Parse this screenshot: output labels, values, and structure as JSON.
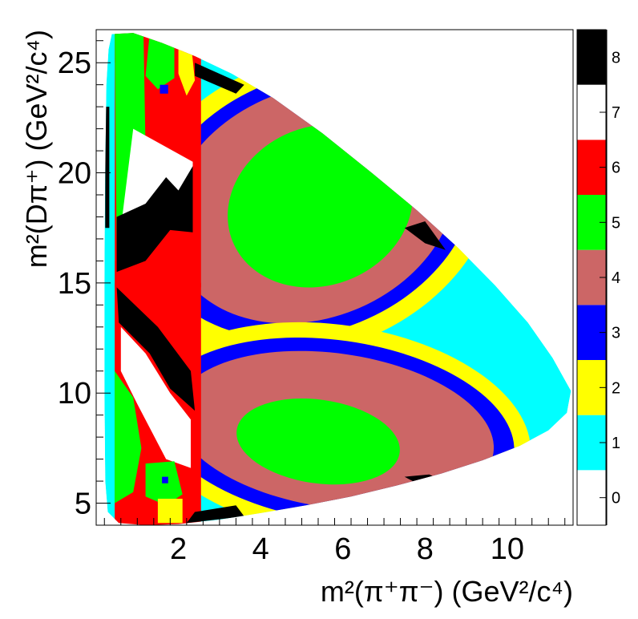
{
  "chart_data": {
    "type": "heatmap",
    "title": "",
    "xlabel": "m²(π⁺π⁻) (GeV²/c⁴)",
    "ylabel": "m²(Dπ⁺) (GeV²/c⁴)",
    "xlim": [
      0,
      11.6
    ],
    "ylim": [
      4.0,
      26.5
    ],
    "x_ticks": [
      2,
      4,
      6,
      8,
      10
    ],
    "x_tick_labels": [
      "2",
      "4",
      "6",
      "8",
      "10"
    ],
    "y_ticks": [
      5,
      10,
      15,
      20,
      25
    ],
    "y_tick_labels": [
      "5",
      "10",
      "15",
      "20",
      "25"
    ],
    "z_range": [
      -0.5,
      8.5
    ],
    "color_levels": [
      {
        "value": 0,
        "color": "#ffffff"
      },
      {
        "value": 1,
        "color": "#00ffff"
      },
      {
        "value": 2,
        "color": "#ffff00"
      },
      {
        "value": 3,
        "color": "#0000ff"
      },
      {
        "value": 4,
        "color": "#cc6666"
      },
      {
        "value": 5,
        "color": "#00ff00"
      },
      {
        "value": 6,
        "color": "#ff0000"
      },
      {
        "value": 7,
        "color": "#ffffff"
      },
      {
        "value": 8,
        "color": "#000000"
      }
    ],
    "colorbar_labels": [
      "0",
      "1",
      "2",
      "3",
      "4",
      "5",
      "6",
      "7",
      "8"
    ],
    "grid": false,
    "legend": "colorbar-right",
    "description_regions": [
      {
        "name": "upper-lobe",
        "center": [
          5.2,
          18.6
        ],
        "levels": [
          1,
          2,
          3,
          4,
          5
        ]
      },
      {
        "name": "lower-lobe",
        "center": [
          5.6,
          8.0
        ],
        "levels": [
          1,
          2,
          3,
          4,
          5
        ]
      }
    ]
  }
}
